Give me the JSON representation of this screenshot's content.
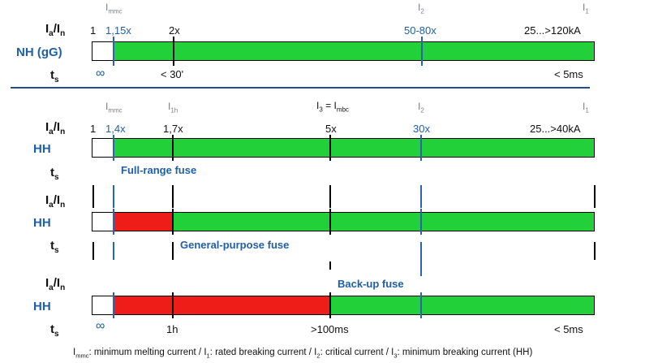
{
  "colors": {
    "green": "#22d13a",
    "red": "#ef1d17",
    "blue_marker": "#2a64b0",
    "black": "#000000",
    "label_blue": "#1f5fa8",
    "divider": "#1f4e8c"
  },
  "top_section": {
    "symbols": {
      "i_mmc": "I",
      "i_mmc_sub": "mmc",
      "i2": "I",
      "i2_sub": "2",
      "i1": "I",
      "i1_sub": "1"
    },
    "ratio_label": {
      "a": "I",
      "a_sub": "a",
      "slash": "/",
      "b": "I",
      "b_sub": "n"
    },
    "ticks": {
      "one": "1",
      "mmc": "1,15x",
      "two": "2x",
      "range": "50-80x",
      "max": "25...>120kA"
    },
    "row_label": "NH (gG)",
    "ts_label": {
      "t": "t",
      "sub": "s"
    },
    "time_ticks": {
      "inf": "∞",
      "mid": "< 30'",
      "end": "< 5ms"
    }
  },
  "bottom_section": {
    "symbols": {
      "i_mmc": "I",
      "i_mmc_sub": "mmc",
      "i1h": "I",
      "i1h_sub": "1h",
      "i3": "I",
      "i3_sub": "3",
      "eq": " = I",
      "i_mbc_sub": "mbc",
      "i2": "I",
      "i2_sub": "2",
      "i1": "I",
      "i1_sub": "1"
    },
    "ratio_label": {
      "a": "I",
      "a_sub": "a",
      "slash": "/",
      "b": "I",
      "b_sub": "n"
    },
    "ticks": {
      "one": "1",
      "mmc": "1,4x",
      "one_h": "1,7x",
      "five": "5x",
      "thirty": "30x",
      "max": "25...>40kA"
    },
    "fuses": [
      {
        "row_label": "HH",
        "name": "Full-range fuse"
      },
      {
        "row_label": "HH",
        "name": "General-purpose fuse"
      },
      {
        "row_label": "HH",
        "name": "Back-up fuse"
      }
    ],
    "ts_label": {
      "t": "t",
      "sub": "s"
    },
    "time_ticks": {
      "inf": "∞",
      "one_h": "1h",
      "mid": ">100ms",
      "end": "< 5ms"
    }
  },
  "footer": {
    "p1": "I",
    "p1_sub": "mmc",
    "p2": ": minimum melting current / I",
    "p2_sub": "1",
    "p3": ": rated breaking current / I",
    "p3_sub": "2",
    "p4": ": critical current / I",
    "p4_sub": "3",
    "p5": ": minimum breaking current (HH)"
  }
}
